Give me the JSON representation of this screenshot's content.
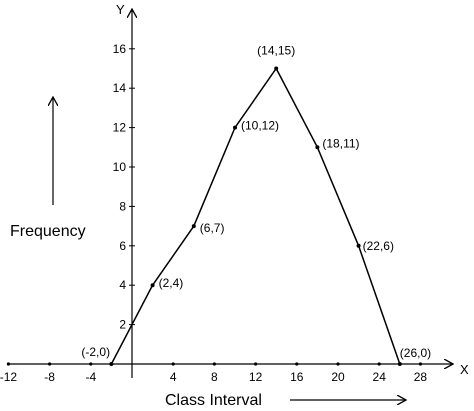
{
  "chart_data": {
    "type": "line",
    "title": "",
    "xlabel": "Class Interval",
    "ylabel": "Frequency",
    "x_axis_name": "X",
    "y_axis_name": "Y",
    "xlim": [
      -12,
      28
    ],
    "ylim": [
      0,
      16
    ],
    "x_ticks": [
      -12,
      -8,
      -4,
      0,
      4,
      8,
      12,
      16,
      20,
      24,
      28
    ],
    "y_ticks": [
      2,
      4,
      6,
      8,
      10,
      12,
      14,
      16
    ],
    "grid": false,
    "series": [
      {
        "points": [
          {
            "x": -2,
            "y": 0,
            "label": "(-2,0)"
          },
          {
            "x": 2,
            "y": 4,
            "label": "(2,4)"
          },
          {
            "x": 6,
            "y": 7,
            "label": "(6,7)"
          },
          {
            "x": 10,
            "y": 12,
            "label": "(10,12)"
          },
          {
            "x": 14,
            "y": 15,
            "label": "(14,15)"
          },
          {
            "x": 18,
            "y": 11,
            "label": "(18,11)"
          },
          {
            "x": 22,
            "y": 6,
            "label": "(22,6)"
          },
          {
            "x": 26,
            "y": 0,
            "label": "(26,0)"
          }
        ]
      }
    ]
  }
}
